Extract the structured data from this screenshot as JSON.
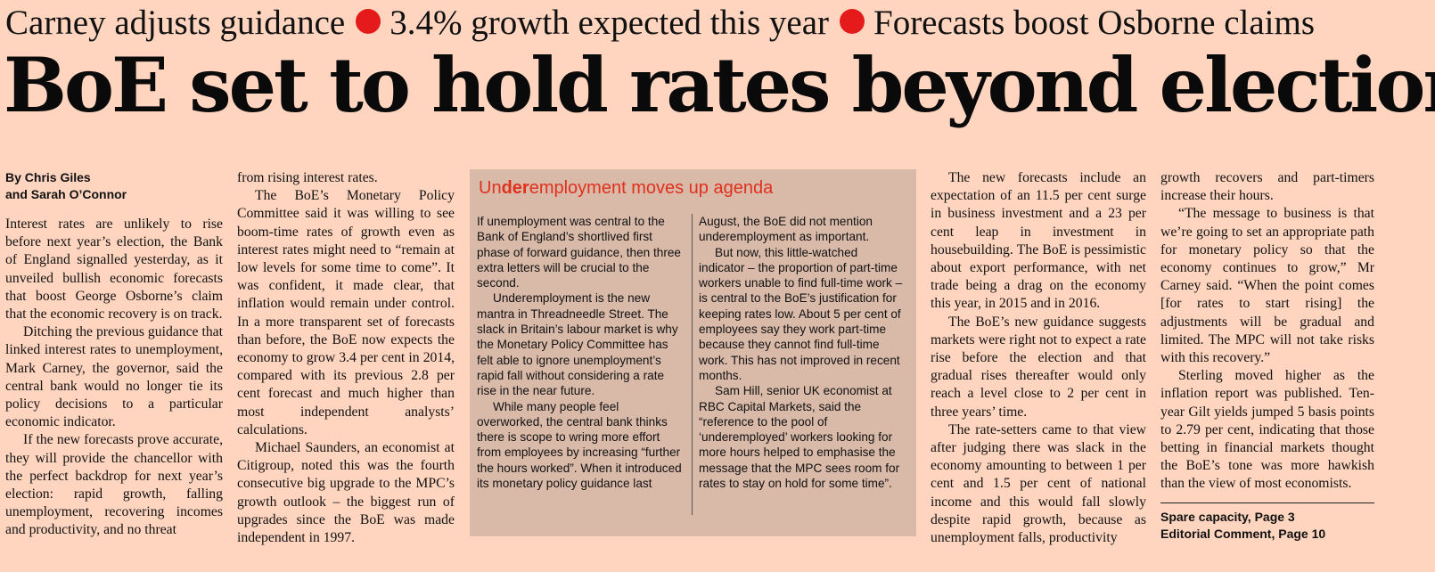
{
  "kickers": [
    "Carney adjusts guidance",
    "3.4% growth expected this year",
    "Forecasts boost Osborne claims"
  ],
  "headline": "BoE set to hold rates beyond election",
  "byline": {
    "line1": "By Chris Giles",
    "line2": "and Sarah O’Connor"
  },
  "story_paragraphs": [
    "Interest rates are unlikely to rise before next year’s election, the Bank of England signalled yesterday, as it unveiled bullish economic forecasts that boost George Osborne’s claim that the economic recovery is on track.",
    "Ditching the previous guidance that linked interest rates to unemployment, Mark Carney, the governor, said the central bank would no longer tie its policy decisions to a particular economic indicator.",
    "If the new forecasts prove accurate, they will provide the chancellor with the perfect backdrop for next year’s election: rapid growth, falling unemployment, recovering incomes and productivity, and no threat",
    "from rising interest rates.",
    "The BoE’s Monetary Policy Committee said it was willing to see boom-time rates of growth even as interest rates might need to “remain at low levels for some time to come”. It was confident, it made clear, that inflation would remain under control. In a more transparent set of forecasts than before, the BoE now expects the economy to grow 3.4 per cent in 2014, compared with its previous 2.8 per cent forecast and much higher than most independent analysts’ calculations.",
    "Michael Saunders, an economist at Citigroup, noted this was the fourth consecutive big upgrade to the MPC’s growth outlook – the biggest run of upgrades since the BoE was made independent in 1997.",
    "The new forecasts include an expectation of an 11.5 per cent surge in business investment and a 23 per cent leap in investment in housebuilding. The BoE is pessimistic about export performance, with net trade being a drag on the economy this year, in 2015 and in 2016.",
    "The BoE’s new guidance suggests markets were right not to expect a rate rise before the election and that gradual rises thereafter would only reach a level close to 2 per cent in three years’ time.",
    "The rate-setters came to that view after judging there was slack in the economy amounting to between 1 per cent and 1.5 per cent of national income and this would fall slowly despite rapid growth, because as unemployment falls, productivity",
    "growth recovers and part-timers increase their hours.",
    "“The message to business is that we’re going to set an appropriate path for monetary policy so that the economy continues to grow,” Mr Carney said. “When the point comes [for rates to start rising] the adjustments will be gradual and limited. The MPC will not take risks with this recovery.”",
    "Sterling moved higher as the inflation report was published. Ten-year Gilt yields jumped 5 basis points to 2.79 per cent, indicating that those betting in financial markets thought the BoE’s tone was more hawkish than the view of most economists."
  ],
  "references": [
    "Spare capacity, Page 3",
    "Editorial Comment, Page 10"
  ],
  "sidebar": {
    "title_prefix": "Un",
    "title_bold": "der",
    "title_suffix": "employment moves up agenda",
    "paragraphs": [
      "If unemployment was central to the Bank of England’s shortlived first phase of forward guidance, then three extra letters will be crucial to the second.",
      "Underemployment is the new mantra in Threadneedle Street. The slack in Britain’s labour market is why the Monetary Policy Committee has felt able to ignore unemployment’s rapid fall without considering a rate rise in the near future.",
      "While many people feel overworked, the central bank thinks there is scope to wring more effort from employees by increasing “further the hours worked”. When it introduced its monetary policy guidance last",
      "August, the BoE did not mention underemployment as important.",
      "But now, this little-watched indicator – the proportion of part-time workers unable to find full-time work – is central to the BoE’s justification for keeping rates low. About 5 per cent of employees say they work part-time because they cannot find full-time work. This has not improved in recent months.",
      "Sam Hill, senior UK economist at RBC Capital Markets, said the “reference to the pool of ‘underemployed’ workers looking for more hours helped to emphasise the message that the MPC sees room for rates to stay on hold for some time”."
    ]
  },
  "colors": {
    "page_background": "#ffd5bf",
    "bullet": "#e51b1b",
    "sidebar_background": "#d9b9a8",
    "sidebar_title": "#e0301e"
  }
}
